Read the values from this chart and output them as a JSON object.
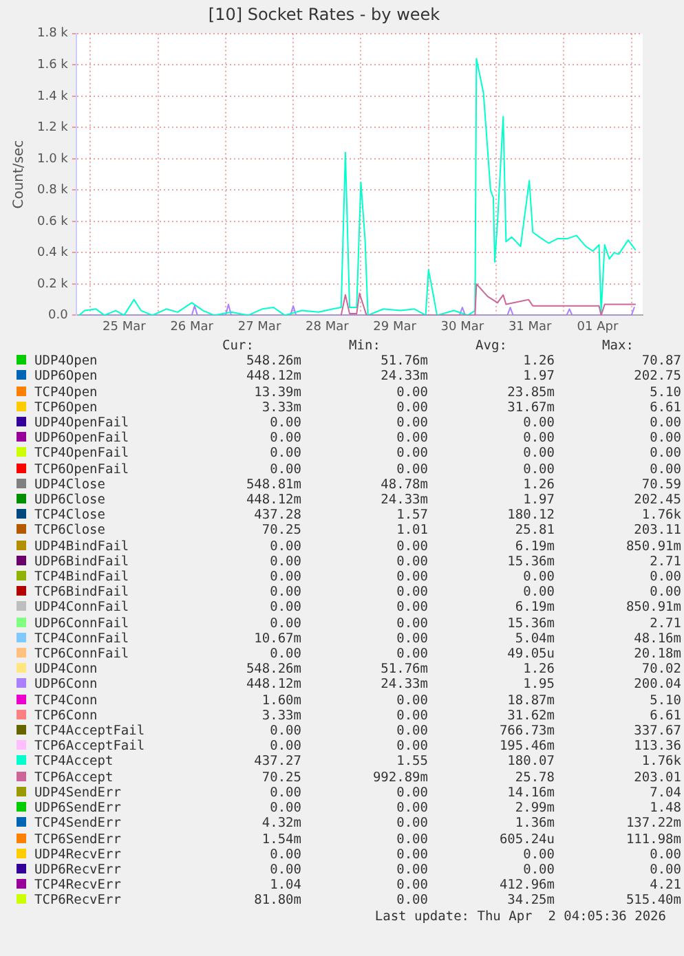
{
  "chart_data": {
    "type": "line",
    "title": "[10] Socket Rates - by week",
    "ylabel": "Count/sec",
    "grid": true,
    "legend": "bottom",
    "xlim": [
      "2026-03-24T19:00",
      "2026-04-02T04:00"
    ],
    "xticks": [
      {
        "value": "2026-03-25T00:00",
        "label": null
      },
      {
        "value": "2026-03-25T12:00",
        "label": "25 Mar"
      },
      {
        "value": "2026-03-26T00:00",
        "label": null
      },
      {
        "value": "2026-03-26T12:00",
        "label": "26 Mar"
      },
      {
        "value": "2026-03-27T00:00",
        "label": null
      },
      {
        "value": "2026-03-27T12:00",
        "label": "27 Mar"
      },
      {
        "value": "2026-03-28T00:00",
        "label": null
      },
      {
        "value": "2026-03-28T12:00",
        "label": "28 Mar"
      },
      {
        "value": "2026-03-29T00:00",
        "label": null
      },
      {
        "value": "2026-03-29T12:00",
        "label": "29 Mar"
      },
      {
        "value": "2026-03-30T00:00",
        "label": null
      },
      {
        "value": "2026-03-30T12:00",
        "label": "30 Mar"
      },
      {
        "value": "2026-03-31T00:00",
        "label": null
      },
      {
        "value": "2026-03-31T12:00",
        "label": "31 Mar"
      },
      {
        "value": "2026-04-01T00:00",
        "label": null
      },
      {
        "value": "2026-04-01T12:00",
        "label": "01 Apr"
      },
      {
        "value": "2026-04-02T00:00",
        "label": null
      }
    ],
    "ylim": [
      0,
      1800
    ],
    "yticks": [
      {
        "value": 0,
        "label": "0.0"
      },
      {
        "value": 200,
        "label": "0.2 k"
      },
      {
        "value": 400,
        "label": "0.4 k"
      },
      {
        "value": 600,
        "label": "0.6 k"
      },
      {
        "value": 800,
        "label": "0.8 k"
      },
      {
        "value": 1000,
        "label": "1.0 k"
      },
      {
        "value": 1200,
        "label": "1.2 k"
      },
      {
        "value": 1400,
        "label": "1.4 k"
      },
      {
        "value": 1600,
        "label": "1.6 k"
      },
      {
        "value": 1800,
        "label": "1.8 k"
      }
    ],
    "series": [
      {
        "name": "UDP4Open",
        "color": "#00cc00"
      },
      {
        "name": "UDP6Open",
        "color": "#0066b3"
      },
      {
        "name": "TCP4Open",
        "color": "#ff8000"
      },
      {
        "name": "TCP6Open",
        "color": "#ffcc00"
      },
      {
        "name": "UDP4OpenFail",
        "color": "#330099"
      },
      {
        "name": "UDP6OpenFail",
        "color": "#990099"
      },
      {
        "name": "TCP4OpenFail",
        "color": "#ccff00"
      },
      {
        "name": "TCP6OpenFail",
        "color": "#ff0000"
      },
      {
        "name": "UDP4Close",
        "color": "#808080"
      },
      {
        "name": "UDP6Close",
        "color": "#008f00"
      },
      {
        "name": "TCP4Close",
        "color": "#00487d"
      },
      {
        "name": "TCP6Close",
        "color": "#b35a00"
      },
      {
        "name": "UDP4BindFail",
        "color": "#b38f00"
      },
      {
        "name": "UDP6BindFail",
        "color": "#6b006b"
      },
      {
        "name": "TCP4BindFail",
        "color": "#8fb300"
      },
      {
        "name": "TCP6BindFail",
        "color": "#b30000"
      },
      {
        "name": "UDP4ConnFail",
        "color": "#bebebe"
      },
      {
        "name": "UDP6ConnFail",
        "color": "#80ff80"
      },
      {
        "name": "TCP4ConnFail",
        "color": "#80c9ff"
      },
      {
        "name": "TCP6ConnFail",
        "color": "#ffc080"
      },
      {
        "name": "UDP4Conn",
        "color": "#ffe680"
      },
      {
        "name": "UDP6Conn",
        "color": "#aa80ff",
        "x": [
          "2026-03-24T21:00",
          "2026-03-26T12:00",
          "2026-03-26T13:00",
          "2026-03-26T14:00",
          "2026-03-27T00:00",
          "2026-03-27T01:00",
          "2026-03-27T02:00",
          "2026-03-27T23:00",
          "2026-03-28T00:00",
          "2026-03-28T01:00",
          "2026-03-30T11:00",
          "2026-03-30T12:00",
          "2026-03-30T13:00",
          "2026-03-31T04:00",
          "2026-03-31T05:00",
          "2026-03-31T06:00",
          "2026-04-01T01:00",
          "2026-04-01T02:00",
          "2026-04-01T03:00",
          "2026-04-02T00:00",
          "2026-04-02T01:00"
        ],
        "values": [
          0,
          0,
          60,
          0,
          0,
          70,
          0,
          0,
          60,
          0,
          0,
          50,
          0,
          0,
          50,
          0,
          0,
          40,
          0,
          0,
          50
        ]
      },
      {
        "name": "TCP4Conn",
        "color": "#ee00cc"
      },
      {
        "name": "TCP6Conn",
        "color": "#ff8080"
      },
      {
        "name": "TCP4AcceptFail",
        "color": "#666600"
      },
      {
        "name": "TCP6AcceptFail",
        "color": "#ffbfff"
      },
      {
        "name": "TCP4Accept",
        "color": "#00ffcc",
        "x": [
          "2026-03-24T20:00",
          "2026-03-24T22:00",
          "2026-03-25T02:00",
          "2026-03-25T05:00",
          "2026-03-25T09:00",
          "2026-03-25T12:00",
          "2026-03-25T15:30",
          "2026-03-25T18:00",
          "2026-03-25T22:00",
          "2026-03-26T03:00",
          "2026-03-26T07:00",
          "2026-03-26T12:00",
          "2026-03-26T16:00",
          "2026-03-26T20:00",
          "2026-03-27T02:00",
          "2026-03-27T08:00",
          "2026-03-27T13:00",
          "2026-03-27T17:00",
          "2026-03-27T21:00",
          "2026-03-28T03:00",
          "2026-03-28T09:00",
          "2026-03-28T14:00",
          "2026-03-28T17:00",
          "2026-03-28T18:30",
          "2026-03-28T20:00",
          "2026-03-28T22:30",
          "2026-03-29T00:00",
          "2026-03-29T01:30",
          "2026-03-29T02:30",
          "2026-03-29T08:00",
          "2026-03-29T14:00",
          "2026-03-29T19:00",
          "2026-03-29T23:00",
          "2026-03-30T00:00",
          "2026-03-30T01:30",
          "2026-03-30T03:00",
          "2026-03-30T09:00",
          "2026-03-30T14:00",
          "2026-03-30T16:30",
          "2026-03-30T17:00",
          "2026-03-30T19:30",
          "2026-03-30T21:10",
          "2026-03-30T22:00",
          "2026-03-30T23:00",
          "2026-03-30T23:30",
          "2026-03-31T00:30",
          "2026-03-31T02:30",
          "2026-03-31T03:30",
          "2026-03-31T05:30",
          "2026-03-31T08:40",
          "2026-03-31T11:45",
          "2026-03-31T13:00",
          "2026-03-31T15:20",
          "2026-03-31T18:40",
          "2026-03-31T21:50",
          "2026-04-01T01:20",
          "2026-04-01T04:30",
          "2026-04-01T07:50",
          "2026-04-01T10:20",
          "2026-04-01T12:30",
          "2026-04-01T13:15",
          "2026-04-01T14:30",
          "2026-04-01T16:10",
          "2026-04-01T17:50",
          "2026-04-01T19:30",
          "2026-04-01T22:50",
          "2026-04-02T01:20"
        ],
        "values": [
          0,
          30,
          40,
          0,
          30,
          0,
          100,
          30,
          0,
          40,
          20,
          80,
          30,
          0,
          20,
          0,
          40,
          50,
          0,
          30,
          20,
          40,
          50,
          1040,
          50,
          50,
          850,
          480,
          0,
          40,
          30,
          40,
          0,
          290,
          150,
          0,
          30,
          0,
          30,
          1640,
          1420,
          1010,
          800,
          750,
          340,
          600,
          1270,
          470,
          500,
          440,
          860,
          530,
          500,
          460,
          490,
          490,
          510,
          440,
          410,
          450,
          20,
          450,
          360,
          400,
          390,
          480,
          420
        ]
      },
      {
        "name": "TCP6Accept",
        "color": "#cc6699",
        "x": [
          "2026-03-28T17:00",
          "2026-03-28T18:30",
          "2026-03-28T20:00",
          "2026-03-28T22:30",
          "2026-03-28T23:30",
          "2026-03-29T02:00",
          "2026-03-30T16:30",
          "2026-03-30T17:00",
          "2026-03-30T21:00",
          "2026-03-31T00:30",
          "2026-03-31T02:30",
          "2026-03-31T03:30",
          "2026-03-31T11:30",
          "2026-03-31T13:00",
          "2026-04-01T12:30",
          "2026-04-01T13:15",
          "2026-04-01T14:30",
          "2026-04-02T01:20"
        ],
        "values": [
          0,
          130,
          10,
          10,
          140,
          0,
          0,
          200,
          120,
          80,
          130,
          70,
          100,
          60,
          60,
          0,
          70,
          70
        ]
      },
      {
        "name": "UDP4SendErr",
        "color": "#999900"
      },
      {
        "name": "UDP6SendErr",
        "color": "#00cc00"
      },
      {
        "name": "TCP4SendErr",
        "color": "#0066b3"
      },
      {
        "name": "TCP6SendErr",
        "color": "#ff8000"
      },
      {
        "name": "UDP4RecvErr",
        "color": "#ffcc00"
      },
      {
        "name": "UDP6RecvErr",
        "color": "#330099"
      },
      {
        "name": "TCP4RecvErr",
        "color": "#990099"
      },
      {
        "name": "TCP6RecvErr",
        "color": "#ccff00"
      }
    ],
    "annotations": [
      "Cur:",
      "Min:",
      "Avg:",
      "Max:",
      "548.26m",
      "51.76m",
      "1.26",
      "70.87",
      "448.12m",
      "24.33m",
      "1.97",
      "202.75",
      "13.39m",
      "0.00",
      "23.85m",
      "5.10",
      "3.33m",
      "0.00",
      "31.67m",
      "6.61",
      "0.00",
      "0.00",
      "0.00",
      "0.00",
      "0.00",
      "0.00",
      "0.00",
      "0.00",
      "0.00",
      "0.00",
      "0.00",
      "0.00",
      "0.00",
      "0.00",
      "0.00",
      "0.00",
      "548.81m",
      "48.78m",
      "1.26",
      "70.59",
      "448.12m",
      "24.33m",
      "1.97",
      "202.45",
      "437.28",
      "1.57",
      "180.12",
      "1.76k",
      "70.25",
      "1.01",
      "25.81",
      "203.11",
      "0.00",
      "0.00",
      "6.19m",
      "850.91m",
      "0.00",
      "0.00",
      "15.36m",
      "2.71",
      "0.00",
      "0.00",
      "0.00",
      "0.00",
      "0.00",
      "0.00",
      "0.00",
      "0.00",
      "0.00",
      "0.00",
      "6.19m",
      "850.91m",
      "0.00",
      "0.00",
      "15.36m",
      "2.71",
      "10.67m",
      "0.00",
      "5.04m",
      "48.16m",
      "0.00",
      "0.00",
      "49.05u",
      "20.18m",
      "548.26m",
      "51.76m",
      "1.26",
      "70.02",
      "448.12m",
      "24.33m",
      "1.95",
      "200.04",
      "1.60m",
      "0.00",
      "18.87m",
      "5.10",
      "3.33m",
      "0.00",
      "31.62m",
      "6.61",
      "0.00",
      "0.00",
      "766.73m",
      "337.67",
      "0.00",
      "0.00",
      "195.46m",
      "113.36",
      "437.27",
      "1.55",
      "180.07",
      "1.76k",
      "70.25",
      "992.89m",
      "25.78",
      "203.01",
      "0.00",
      "0.00",
      "14.16m",
      "7.04",
      "0.00",
      "0.00",
      "2.99m",
      "1.48",
      "4.32m",
      "0.00",
      "1.36m",
      "137.22m",
      "1.54m",
      "0.00",
      "605.24u",
      "111.98m",
      "0.00",
      "0.00",
      "0.00",
      "0.00",
      "0.00",
      "0.00",
      "0.00",
      "0.00",
      "1.04",
      "0.00",
      "412.96m",
      "4.21",
      "81.80m",
      "0.00",
      "34.25m",
      "515.40m",
      "Last update: Thu Apr  2 04:05:36 2026"
    ]
  }
}
